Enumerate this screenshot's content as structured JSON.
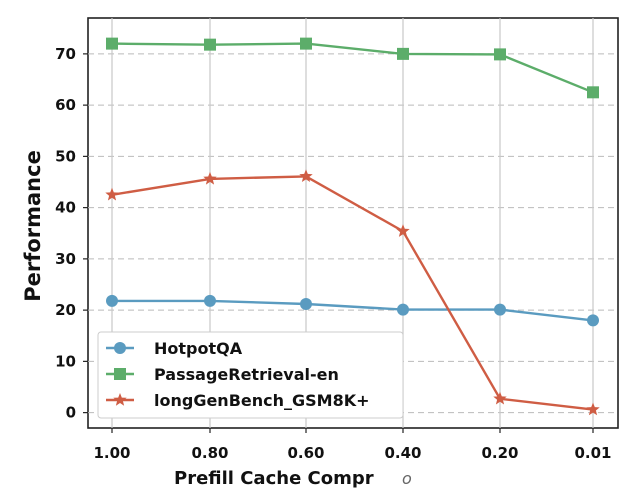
{
  "chart_data": {
    "type": "line",
    "title": "",
    "xlabel": "Prefill Cache Compr",
    "xlabel_occluded_fragment": "o",
    "ylabel": "Performance",
    "categories": [
      "1.00",
      "0.80",
      "0.60",
      "0.40",
      "0.20",
      "0.01"
    ],
    "ylim": [
      -3,
      77
    ],
    "yticks": [
      0,
      10,
      20,
      30,
      40,
      50,
      60,
      70
    ],
    "grid": true,
    "legend_position": "bottom-left",
    "series": [
      {
        "name": "HotpotQA",
        "color": "#5a9bc0",
        "marker": "circle",
        "values": [
          21.8,
          21.8,
          21.2,
          20.1,
          20.1,
          18.0
        ]
      },
      {
        "name": "PassageRetrieval-en",
        "color": "#5cad6a",
        "marker": "square",
        "values": [
          72.0,
          71.8,
          72.0,
          70.0,
          69.9,
          62.5
        ]
      },
      {
        "name": "longGenBench_GSM8K+",
        "color": "#cf5d44",
        "marker": "star",
        "values": [
          42.5,
          45.6,
          46.1,
          35.4,
          2.7,
          0.6
        ]
      }
    ]
  }
}
